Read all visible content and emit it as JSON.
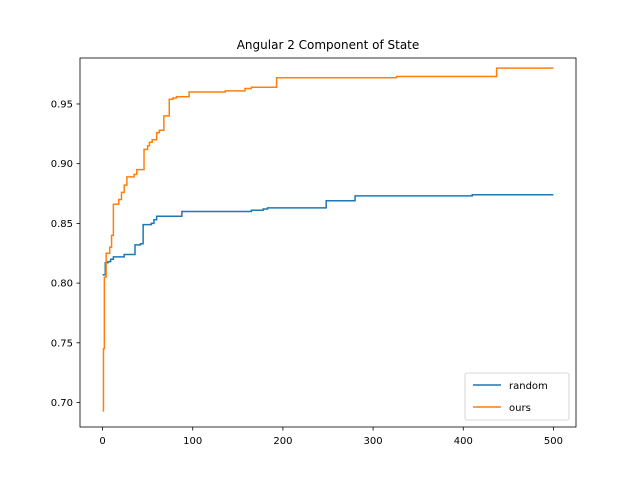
{
  "chart_data": {
    "type": "line",
    "title": "Angular 2 Component of State",
    "xlabel": "",
    "ylabel": "",
    "xlim": [
      -25,
      525
    ],
    "ylim": [
      0.6795,
      0.9885
    ],
    "xticks": [
      0,
      100,
      200,
      300,
      400,
      500
    ],
    "xtick_labels": [
      "0",
      "100",
      "200",
      "300",
      "400",
      "500"
    ],
    "yticks": [
      0.7,
      0.75,
      0.8,
      0.85,
      0.9,
      0.95
    ],
    "ytick_labels": [
      "0.70",
      "0.75",
      "0.80",
      "0.85",
      "0.90",
      "0.95"
    ],
    "grid": false,
    "legend_position": "lower-right",
    "series": [
      {
        "name": "random",
        "color": "#1f77b4",
        "step": true,
        "points": [
          [
            0,
            0.807
          ],
          [
            3,
            0.817
          ],
          [
            6,
            0.818
          ],
          [
            9,
            0.82
          ],
          [
            12,
            0.822
          ],
          [
            24,
            0.824
          ],
          [
            36,
            0.832
          ],
          [
            42,
            0.833
          ],
          [
            45,
            0.849
          ],
          [
            54,
            0.85
          ],
          [
            57,
            0.853
          ],
          [
            60,
            0.856
          ],
          [
            88,
            0.86
          ],
          [
            165,
            0.861
          ],
          [
            178,
            0.862
          ],
          [
            183,
            0.863
          ],
          [
            248,
            0.869
          ],
          [
            280,
            0.873
          ],
          [
            410,
            0.874
          ],
          [
            500,
            0.874
          ]
        ]
      },
      {
        "name": "ours",
        "color": "#ff7f0e",
        "step": true,
        "points": [
          [
            0,
            0.693
          ],
          [
            1,
            0.745
          ],
          [
            2,
            0.805
          ],
          [
            4,
            0.825
          ],
          [
            8,
            0.83
          ],
          [
            10,
            0.84
          ],
          [
            12,
            0.866
          ],
          [
            18,
            0.87
          ],
          [
            21,
            0.876
          ],
          [
            24,
            0.882
          ],
          [
            27,
            0.889
          ],
          [
            35,
            0.891
          ],
          [
            38,
            0.895
          ],
          [
            46,
            0.912
          ],
          [
            50,
            0.915
          ],
          [
            52,
            0.918
          ],
          [
            55,
            0.92
          ],
          [
            60,
            0.926
          ],
          [
            63,
            0.928
          ],
          [
            68,
            0.94
          ],
          [
            74,
            0.954
          ],
          [
            78,
            0.955
          ],
          [
            82,
            0.956
          ],
          [
            96,
            0.96
          ],
          [
            136,
            0.961
          ],
          [
            158,
            0.963
          ],
          [
            165,
            0.964
          ],
          [
            193,
            0.972
          ],
          [
            326,
            0.973
          ],
          [
            437,
            0.98
          ],
          [
            500,
            0.98
          ]
        ]
      }
    ]
  }
}
